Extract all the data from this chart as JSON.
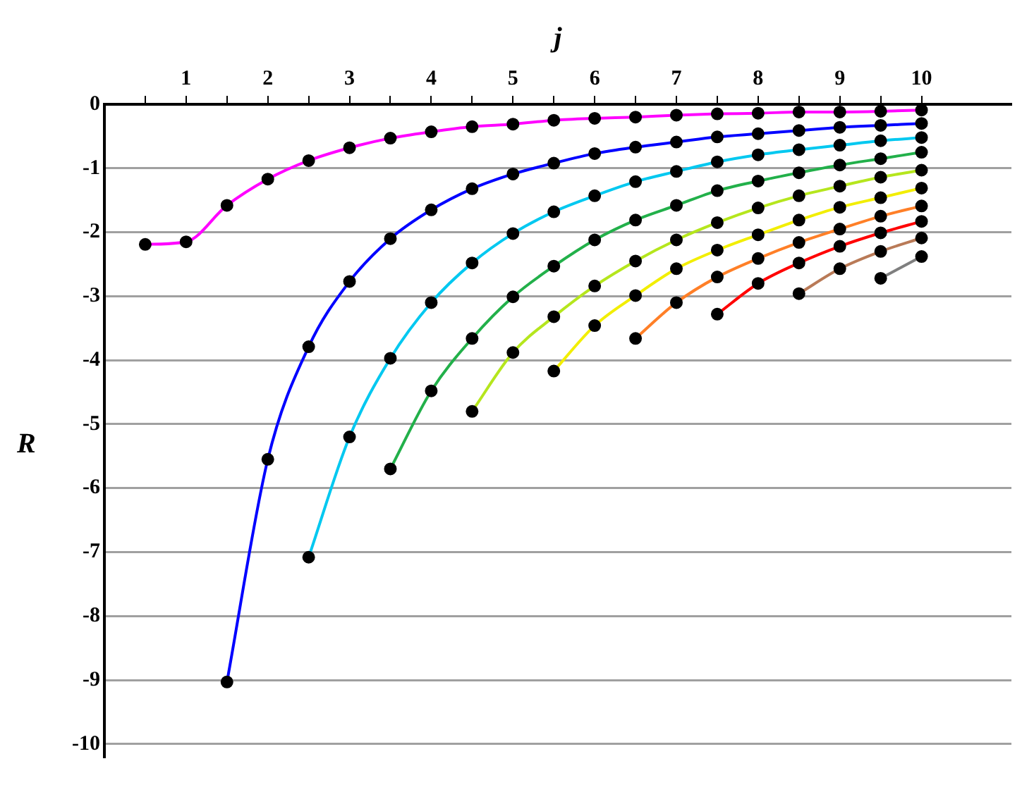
{
  "chart_data": {
    "type": "line",
    "xlabel": "j",
    "ylabel": "R",
    "xlim": [
      0,
      11.1
    ],
    "ylim": [
      -10.2,
      0
    ],
    "xticks": [
      {
        "value": 0.5,
        "label": null
      },
      1,
      {
        "value": 1.5,
        "label": null
      },
      2,
      {
        "value": 2.5,
        "label": null
      },
      3,
      {
        "value": 3.5,
        "label": null
      },
      4,
      {
        "value": 4.5,
        "label": null
      },
      5,
      {
        "value": 5.5,
        "label": null
      },
      6,
      {
        "value": 6.5,
        "label": null
      },
      7,
      {
        "value": 7.5,
        "label": null
      },
      8,
      {
        "value": 8.5,
        "label": null
      },
      9,
      {
        "value": 9.5,
        "label": null
      },
      10
    ],
    "yticks": [
      -10,
      -9,
      -8,
      -7,
      -6,
      -5,
      -4,
      -3,
      -2,
      -1,
      0
    ],
    "grid": "y",
    "legend": false,
    "marker": "circle",
    "line_style": "solid",
    "series": [
      {
        "color": "#ff00ff",
        "x": [
          0.5,
          1,
          1.5,
          2,
          2.5,
          3,
          3.5,
          4,
          4.5,
          5,
          5.5,
          6,
          6.5,
          7,
          7.5,
          8,
          8.5,
          9,
          9.5,
          10
        ],
        "values": [
          -2.19,
          -2.15,
          -1.58,
          -1.17,
          -0.88,
          -0.68,
          -0.53,
          -0.43,
          -0.35,
          -0.31,
          -0.25,
          -0.22,
          -0.2,
          -0.17,
          -0.15,
          -0.14,
          -0.12,
          -0.12,
          -0.11,
          -0.09
        ]
      },
      {
        "color": "#0000ff",
        "x": [
          1.5,
          2,
          2.5,
          3,
          3.5,
          4,
          4.5,
          5,
          5.5,
          6,
          6.5,
          7,
          7.5,
          8,
          8.5,
          9,
          9.5,
          10
        ],
        "values": [
          -9.03,
          -5.55,
          -3.79,
          -2.77,
          -2.1,
          -1.65,
          -1.32,
          -1.09,
          -0.92,
          -0.77,
          -0.67,
          -0.59,
          -0.51,
          -0.46,
          -0.41,
          -0.36,
          -0.33,
          -0.3
        ]
      },
      {
        "color": "#00c8f0",
        "x": [
          2.5,
          3,
          3.5,
          4,
          4.5,
          5,
          5.5,
          6,
          6.5,
          7,
          7.5,
          8,
          8.5,
          9,
          9.5,
          10
        ],
        "values": [
          -7.08,
          -5.2,
          -3.97,
          -3.1,
          -2.48,
          -2.02,
          -1.68,
          -1.43,
          -1.21,
          -1.05,
          -0.9,
          -0.79,
          -0.71,
          -0.64,
          -0.57,
          -0.52
        ]
      },
      {
        "color": "#22b04a",
        "x": [
          3.5,
          4,
          4.5,
          5,
          5.5,
          6,
          6.5,
          7,
          7.5,
          8,
          8.5,
          9,
          9.5,
          10
        ],
        "values": [
          -5.7,
          -4.48,
          -3.66,
          -3.01,
          -2.53,
          -2.12,
          -1.81,
          -1.58,
          -1.35,
          -1.2,
          -1.07,
          -0.95,
          -0.85,
          -0.75
        ]
      },
      {
        "color": "#b5e61d",
        "x": [
          4.5,
          5,
          5.5,
          6,
          6.5,
          7,
          7.5,
          8,
          8.5,
          9,
          9.5,
          10
        ],
        "values": [
          -4.8,
          -3.88,
          -3.32,
          -2.84,
          -2.45,
          -2.12,
          -1.85,
          -1.62,
          -1.43,
          -1.28,
          -1.14,
          -1.03
        ]
      },
      {
        "color": "#f2ee00",
        "x": [
          5.5,
          6,
          6.5,
          7,
          7.5,
          8,
          8.5,
          9,
          9.5,
          10
        ],
        "values": [
          -4.17,
          -3.46,
          -2.99,
          -2.57,
          -2.28,
          -2.04,
          -1.81,
          -1.61,
          -1.46,
          -1.31
        ]
      },
      {
        "color": "#ff7f27",
        "x": [
          6.5,
          7,
          7.5,
          8,
          8.5,
          9,
          9.5,
          10
        ],
        "values": [
          -3.66,
          -3.1,
          -2.7,
          -2.41,
          -2.16,
          -1.95,
          -1.75,
          -1.59
        ]
      },
      {
        "color": "#ff0000",
        "x": [
          7.5,
          8,
          8.5,
          9,
          9.5,
          10
        ],
        "values": [
          -3.28,
          -2.8,
          -2.48,
          -2.22,
          -2.01,
          -1.83
        ]
      },
      {
        "color": "#b97a57",
        "x": [
          8.5,
          9,
          9.5,
          10
        ],
        "values": [
          -2.96,
          -2.57,
          -2.3,
          -2.09
        ]
      },
      {
        "color": "#7f7f7f",
        "x": [
          9.5,
          10
        ],
        "values": [
          -2.72,
          -2.38
        ]
      }
    ]
  }
}
